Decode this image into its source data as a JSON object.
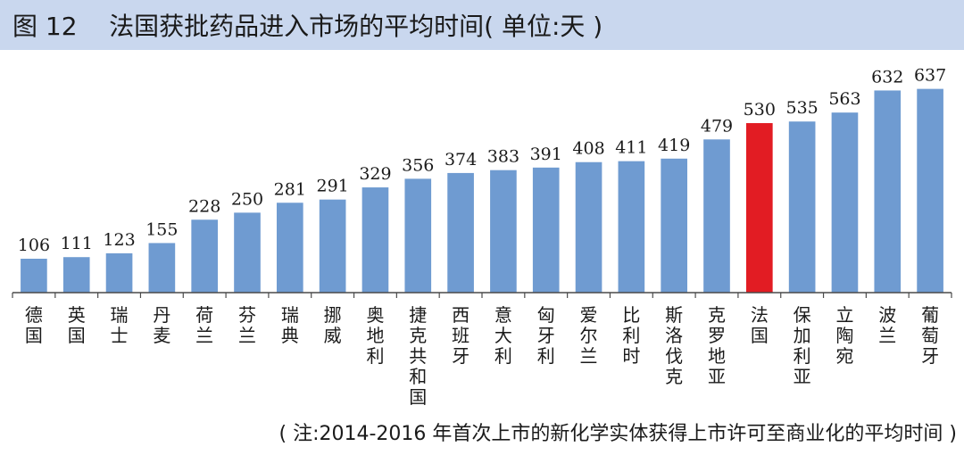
{
  "header": {
    "title": "图 12    法国获批药品进入市场的平均时间( 单位:天 )"
  },
  "note": "( 注:2014-2016 年首次上市的新化学实体获得上市许可至商业化的平均时间 )",
  "colors": {
    "title_background": "#c9d7ee",
    "bar_default": "#6f9bd1",
    "bar_highlight": "#e21c23",
    "axis": "#4a4a4a"
  },
  "chart_data": {
    "type": "bar",
    "categories": [
      "德国",
      "英国",
      "瑞士",
      "丹麦",
      "荷兰",
      "芬兰",
      "瑞典",
      "挪威",
      "奥地利",
      "捷克共和国",
      "西班牙",
      "意大利",
      "匈牙利",
      "爱尔兰",
      "比利时",
      "斯洛伐克",
      "克罗地亚",
      "法国",
      "保加利亚",
      "立陶宛",
      "波兰",
      "葡萄牙"
    ],
    "values": [
      106,
      111,
      123,
      155,
      228,
      250,
      281,
      291,
      329,
      356,
      374,
      383,
      391,
      408,
      411,
      419,
      479,
      530,
      535,
      563,
      632,
      637
    ],
    "highlight_category": "法国",
    "ylim": [
      0,
      650
    ],
    "grid": false,
    "legend": "none",
    "data_labels": true
  }
}
